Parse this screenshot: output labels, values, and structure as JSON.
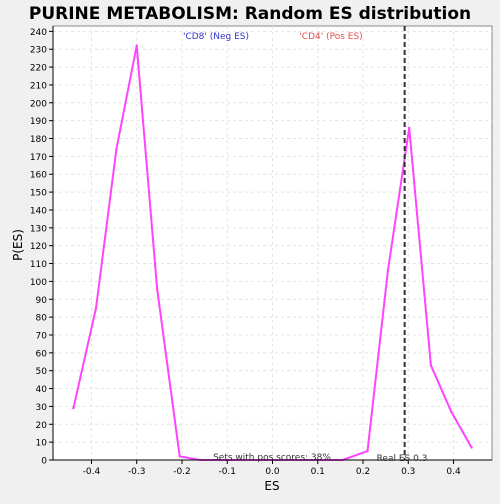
{
  "chart_data": {
    "type": "line",
    "title": "PURINE METABOLISM: Random ES distribution",
    "xlabel": "ES",
    "ylabel": "P(ES)",
    "xlim": [
      -0.485,
      0.485
    ],
    "ylim": [
      0,
      243
    ],
    "x_ticks": [
      -0.4,
      -0.3,
      -0.2,
      -0.1,
      0.0,
      0.1,
      0.2,
      0.3,
      0.4
    ],
    "x_tick_labels": [
      "-0.4",
      "-0.3",
      "-0.2",
      "-0.1",
      "0.0",
      "0.1",
      "0.2",
      "0.3",
      "0.4"
    ],
    "y_ticks": [
      0,
      10,
      20,
      30,
      40,
      50,
      60,
      70,
      80,
      90,
      100,
      110,
      120,
      130,
      140,
      150,
      160,
      170,
      180,
      190,
      200,
      210,
      220,
      230,
      240
    ],
    "grid": true,
    "series": [
      {
        "color": "#ff44ff",
        "points": [
          [
            -0.44,
            29
          ],
          [
            -0.39,
            85
          ],
          [
            -0.345,
            174
          ],
          [
            -0.3,
            232
          ],
          [
            -0.255,
            96
          ],
          [
            -0.205,
            2
          ],
          [
            -0.16,
            0
          ],
          [
            -0.115,
            0
          ],
          [
            -0.07,
            0
          ],
          [
            -0.025,
            0
          ],
          [
            0.02,
            0
          ],
          [
            0.065,
            0
          ],
          [
            0.11,
            0
          ],
          [
            0.155,
            0
          ],
          [
            0.21,
            5
          ],
          [
            0.255,
            106
          ],
          [
            0.302,
            186
          ],
          [
            0.35,
            53
          ],
          [
            0.395,
            27
          ],
          [
            0.44,
            7
          ]
        ]
      }
    ],
    "annotations": [
      {
        "text": "'CD8' (Neg ES)",
        "color": "#3333cc"
      },
      {
        "text": "'CD4' (Pos ES)",
        "color": "#e05050"
      },
      {
        "text": "Sets with pos scores: 38%",
        "color": "#333333"
      },
      {
        "text": "Real ES 0.3",
        "color": "#333333"
      }
    ],
    "real_es": 0.292
  }
}
